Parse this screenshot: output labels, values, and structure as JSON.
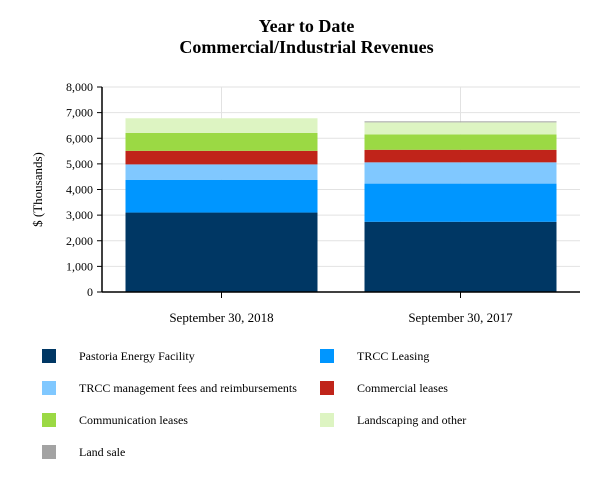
{
  "chart_data": {
    "type": "bar",
    "stacked": true,
    "title": [
      "Year to Date",
      "Commercial/Industrial Revenues"
    ],
    "xlabel": "",
    "ylabel": "$ (Thousands)",
    "ylim": [
      0,
      8000
    ],
    "yticks": [
      0,
      1000,
      2000,
      3000,
      4000,
      5000,
      6000,
      7000,
      8000
    ],
    "ytick_labels": [
      "0",
      "1,000",
      "2,000",
      "3,000",
      "4,000",
      "5,000",
      "6,000",
      "7,000",
      "8,000"
    ],
    "grid": true,
    "legend_placement": "bottom",
    "categories": [
      "September 30, 2018",
      "September 30, 2017"
    ],
    "series": [
      {
        "name": "Pastoria Energy Facility",
        "color": "#003764",
        "values": [
          3100,
          2740
        ]
      },
      {
        "name": "TRCC Leasing",
        "color": "#0096FF",
        "values": [
          1280,
          1490
        ]
      },
      {
        "name": "TRCC management fees and reimbursements",
        "color": "#80C8FF",
        "values": [
          600,
          830
        ]
      },
      {
        "name": "Commercial leases",
        "color": "#C0241A",
        "values": [
          530,
          490
        ]
      },
      {
        "name": "Communication leases",
        "color": "#9BD944",
        "values": [
          700,
          600
        ]
      },
      {
        "name": "Landscaping and other",
        "color": "#DDF4C2",
        "values": [
          570,
          470
        ]
      },
      {
        "name": "Land sale",
        "color": "#A3A3A3",
        "values": [
          0,
          40
        ]
      }
    ]
  }
}
